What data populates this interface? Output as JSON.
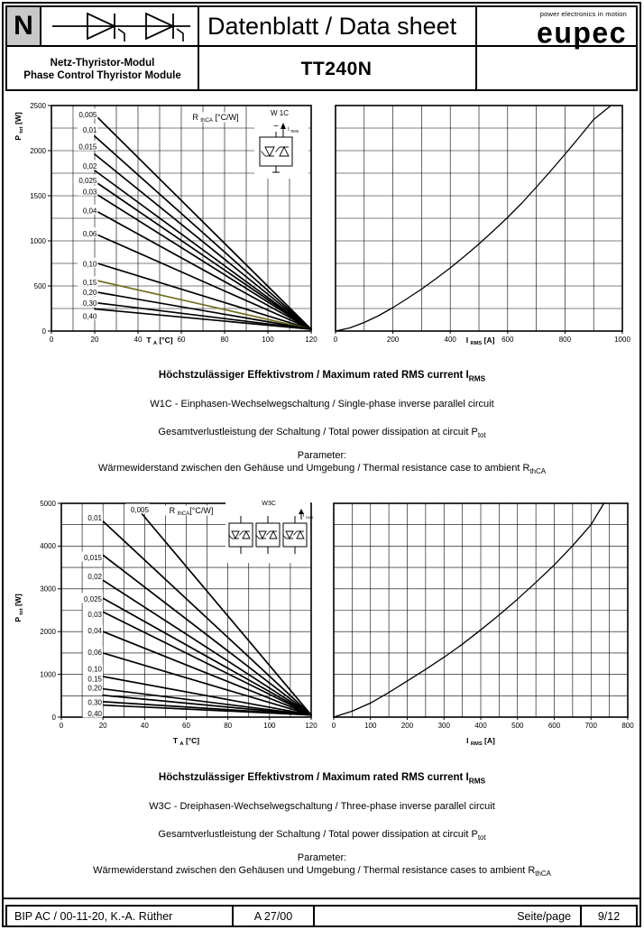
{
  "header": {
    "letter": "N",
    "module_symbol": "two thyristors anti-series on a line",
    "title": "Datenblatt / Data sheet",
    "brand": "eupec",
    "brand_tagline": "power electronics in motion",
    "product_family_de": "Netz-Thyristor-Modul",
    "product_family_en": "Phase Control Thyristor Module",
    "part_number": "TT240N"
  },
  "sections": [
    {
      "heading": [
        {
          "t": "Höchstzulässiger Effektivstrom / Maximum rated RMS current I"
        },
        {
          "t": "RMS",
          "sub": true
        }
      ],
      "lines": [
        [
          {
            "t": "W1C - Einphasen-Wechselwegschaltung / Single-phase inverse parallel circuit"
          }
        ],
        [
          {
            "t": "Gesamtverlustleistung der Schaltung / Total power dissipation at circuit P"
          },
          {
            "t": "tot",
            "sub": true
          }
        ],
        [
          {
            "t": "Parameter:"
          }
        ],
        [
          {
            "t": "Wärmewiderstand zwischen den Gehäuse und Umgebung / Thermal resistance case to ambient R"
          },
          {
            "t": "thCA",
            "sub": true
          }
        ]
      ]
    },
    {
      "heading": [
        {
          "t": "Höchstzulässiger Effektivstrom / Maximum rated RMS current I"
        },
        {
          "t": "RMS",
          "sub": true
        }
      ],
      "lines": [
        [
          {
            "t": "W3C - Dreiphasen-Wechselwegschaltung / Three-phase inverse parallel circuit"
          }
        ],
        [
          {
            "t": "Gesamtverlustleistung der Schaltung / Total power dissipation at circuit P"
          },
          {
            "t": "tot",
            "sub": true
          }
        ],
        [
          {
            "t": "Parameter:"
          }
        ],
        [
          {
            "t": "Wärmewiderstand zwischen den Gehäusen und Umgebung / Thermal resistance cases to ambient R"
          },
          {
            "t": "thCA",
            "sub": true
          }
        ]
      ]
    }
  ],
  "chart_data": [
    {
      "id": "w1c-ptot-vs-ta",
      "type": "line",
      "xlabel": [
        {
          "t": "T "
        },
        {
          "t": "A",
          "sub": true
        },
        {
          "t": " [°C]"
        }
      ],
      "ylabel": [
        {
          "t": "P "
        },
        {
          "t": "tot",
          "sub": true
        },
        {
          "t": " [W]"
        }
      ],
      "legend": [
        {
          "t": "R "
        },
        {
          "t": "thCA",
          "sub": true
        },
        {
          "t": " [°C/W]"
        }
      ],
      "inset_label": "W 1C",
      "inset_current": [
        {
          "t": "I "
        },
        {
          "t": "RMS",
          "sub": true
        }
      ],
      "xlim": [
        0,
        120
      ],
      "ylim": [
        0,
        2500
      ],
      "xticks": [
        0,
        20,
        40,
        60,
        80,
        100,
        120
      ],
      "yticks": [
        0,
        500,
        1000,
        1500,
        2000,
        2500
      ],
      "grid_step_x": 10,
      "grid_step_y": 250,
      "param_label_x": 21,
      "series": [
        {
          "name": "0,005",
          "points": [
            [
              20,
              2400
            ],
            [
              120,
              20
            ]
          ],
          "label_y": 2400
        },
        {
          "name": "0,01",
          "points": [
            [
              20,
              2160
            ],
            [
              120,
              20
            ]
          ],
          "label_y": 2230
        },
        {
          "name": "0,015",
          "points": [
            [
              20,
              1960
            ],
            [
              120,
              20
            ]
          ],
          "label_y": 2045
        },
        {
          "name": "0,02",
          "points": [
            [
              20,
              1780
            ],
            [
              120,
              20
            ]
          ],
          "label_y": 1830
        },
        {
          "name": "0,025",
          "points": [
            [
              20,
              1660
            ],
            [
              120,
              20
            ]
          ],
          "label_y": 1670
        },
        {
          "name": "0,03",
          "points": [
            [
              20,
              1530
            ],
            [
              120,
              20
            ]
          ],
          "label_y": 1545
        },
        {
          "name": "0,04",
          "points": [
            [
              20,
              1340
            ],
            [
              120,
              20
            ]
          ],
          "label_y": 1335
        },
        {
          "name": "0,06",
          "points": [
            [
              20,
              1080
            ],
            [
              120,
              20
            ]
          ],
          "label_y": 1080
        },
        {
          "name": "0,10",
          "points": [
            [
              20,
              760
            ],
            [
              120,
              20
            ]
          ],
          "label_y": 745
        },
        {
          "name": "0,15",
          "points": [
            [
              20,
              565
            ],
            [
              120,
              20
            ]
          ],
          "label_y": 540,
          "color": "#6e6e1e"
        },
        {
          "name": "0,20",
          "points": [
            [
              20,
              435
            ],
            [
              120,
              20
            ]
          ],
          "label_y": 430
        },
        {
          "name": "0,30",
          "points": [
            [
              20,
              315
            ],
            [
              120,
              20
            ]
          ],
          "label_y": 310
        },
        {
          "name": "0,40",
          "points": [
            [
              20,
              245
            ],
            [
              120,
              20
            ]
          ],
          "label_y": 165
        }
      ]
    },
    {
      "id": "w1c-ptot-vs-irms",
      "type": "line",
      "xlabel": [
        {
          "t": "I "
        },
        {
          "t": "RMS",
          "sub": true
        },
        {
          "t": " [A]"
        }
      ],
      "xlim": [
        0,
        1000
      ],
      "ylim": [
        0,
        2500
      ],
      "xticks": [
        0,
        200,
        400,
        600,
        800,
        1000
      ],
      "yticks": [],
      "grid_step_x": 100,
      "grid_step_y": 250,
      "series": [
        {
          "name": "Ptot limit W1C",
          "points": [
            [
              0,
              0
            ],
            [
              50,
              35
            ],
            [
              100,
              95
            ],
            [
              150,
              170
            ],
            [
              200,
              260
            ],
            [
              250,
              360
            ],
            [
              300,
              465
            ],
            [
              350,
              580
            ],
            [
              400,
              700
            ],
            [
              450,
              830
            ],
            [
              500,
              965
            ],
            [
              550,
              1110
            ],
            [
              600,
              1260
            ],
            [
              650,
              1420
            ],
            [
              700,
              1595
            ],
            [
              750,
              1775
            ],
            [
              800,
              1960
            ],
            [
              850,
              2150
            ],
            [
              900,
              2345
            ],
            [
              960,
              2500
            ]
          ]
        }
      ]
    },
    {
      "id": "w3c-ptot-vs-ta",
      "type": "line",
      "xlabel": [
        {
          "t": "T "
        },
        {
          "t": "A",
          "sub": true
        },
        {
          "t": " [°C]"
        }
      ],
      "ylabel": [
        {
          "t": "P "
        },
        {
          "t": "tot",
          "sub": true
        },
        {
          "t": " [W]"
        }
      ],
      "legend": [
        {
          "t": "R "
        },
        {
          "t": "thCA",
          "sub": true
        },
        {
          "t": "[°C/W]"
        }
      ],
      "inset_label": "W3C",
      "inset_current": [
        {
          "t": "I "
        },
        {
          "t": "RMS",
          "sub": true
        }
      ],
      "xlim": [
        0,
        120
      ],
      "ylim": [
        0,
        5000
      ],
      "xticks": [
        0,
        20,
        40,
        60,
        80,
        100,
        120
      ],
      "yticks": [
        0,
        1000,
        2000,
        3000,
        4000,
        5000
      ],
      "grid_step_x": 10,
      "grid_step_y": 500,
      "param_label_x": 19.5,
      "series": [
        {
          "name": "0,005",
          "points": [
            [
              34.5,
              5000
            ],
            [
              120,
              50
            ]
          ],
          "label_y": 4850,
          "label_x": 42
        },
        {
          "name": "0,01",
          "points": [
            [
              20,
              4580
            ],
            [
              120,
              50
            ]
          ],
          "label_y": 4660
        },
        {
          "name": "0,015",
          "points": [
            [
              20,
              3790
            ],
            [
              120,
              50
            ]
          ],
          "label_y": 3730
        },
        {
          "name": "0,02",
          "points": [
            [
              20,
              3200
            ],
            [
              120,
              50
            ]
          ],
          "label_y": 3290
        },
        {
          "name": "0,025",
          "points": [
            [
              20,
              2780
            ],
            [
              120,
              50
            ]
          ],
          "label_y": 2760
        },
        {
          "name": "0,03",
          "points": [
            [
              20,
              2460
            ],
            [
              120,
              50
            ]
          ],
          "label_y": 2400
        },
        {
          "name": "0,04",
          "points": [
            [
              20,
              2000
            ],
            [
              120,
              50
            ]
          ],
          "label_y": 2020
        },
        {
          "name": "0,06",
          "points": [
            [
              20,
              1500
            ],
            [
              120,
              50
            ]
          ],
          "label_y": 1520
        },
        {
          "name": "0,10",
          "points": [
            [
              20,
              950
            ],
            [
              120,
              50
            ]
          ],
          "label_y": 1120
        },
        {
          "name": "0,15",
          "points": [
            [
              20,
              660
            ],
            [
              120,
              50
            ]
          ],
          "label_y": 890
        },
        {
          "name": "0,20",
          "points": [
            [
              20,
              510
            ],
            [
              120,
              50
            ]
          ],
          "label_y": 680
        },
        {
          "name": "0,30",
          "points": [
            [
              20,
              360
            ],
            [
              120,
              50
            ]
          ],
          "label_y": 340
        },
        {
          "name": "0,40",
          "points": [
            [
              20,
              280
            ],
            [
              120,
              50
            ]
          ],
          "label_y": 80
        }
      ]
    },
    {
      "id": "w3c-ptot-vs-irms",
      "type": "line",
      "xlabel": [
        {
          "t": "I "
        },
        {
          "t": "RMS",
          "sub": true
        },
        {
          "t": " [A]"
        }
      ],
      "xlim": [
        0,
        800
      ],
      "ylim": [
        0,
        5000
      ],
      "xticks": [
        0,
        100,
        200,
        300,
        400,
        500,
        600,
        700,
        800
      ],
      "yticks": [],
      "grid_step_x": 50,
      "grid_step_y": 500,
      "series": [
        {
          "name": "Ptot limit W3C",
          "points": [
            [
              0,
              0
            ],
            [
              50,
              140
            ],
            [
              100,
              330
            ],
            [
              150,
              575
            ],
            [
              200,
              845
            ],
            [
              250,
              1115
            ],
            [
              300,
              1400
            ],
            [
              350,
              1705
            ],
            [
              400,
              2040
            ],
            [
              450,
              2390
            ],
            [
              500,
              2760
            ],
            [
              550,
              3150
            ],
            [
              600,
              3560
            ],
            [
              650,
              4010
            ],
            [
              700,
              4500
            ],
            [
              735,
              5000
            ]
          ]
        }
      ]
    }
  ],
  "footer": {
    "author": "BIP AC / 00-11-20, K.-A. Rüther",
    "doc_code": "A 27/00",
    "page_label": "Seite/page",
    "page_value": "9/12"
  }
}
